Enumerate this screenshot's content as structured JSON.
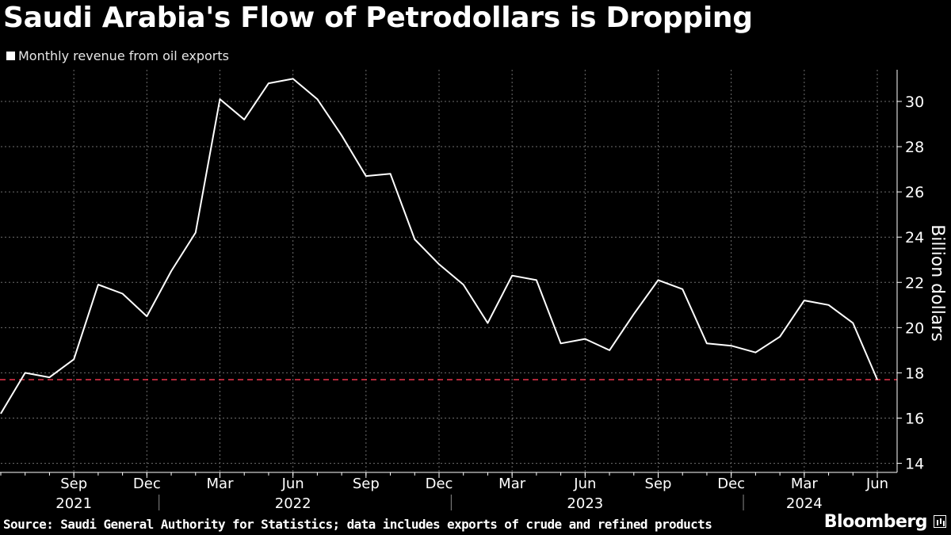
{
  "title": "Saudi Arabia's Flow of Petrodollars is Dropping",
  "legend_label": "Monthly revenue from oil exports",
  "source": "Source: Saudi General Authority for Statistics; data includes exports of crude and refined products",
  "brand": "Bloomberg",
  "colors": {
    "line": "#ffffff",
    "reference": "#e8344a",
    "grid": "#6e6e6e"
  },
  "chart_data": {
    "type": "line",
    "title": "Saudi Arabia's Flow of Petrodollars is Dropping",
    "ylabel": "Billion dollars",
    "xlabel": "",
    "ylim": [
      13.6,
      31.4
    ],
    "yticks": [
      14,
      16,
      18,
      20,
      22,
      24,
      26,
      28,
      30
    ],
    "grid": true,
    "legend_placement": "top-left",
    "x_start": "2021-06",
    "x_end": "2024-06",
    "xticks": [
      {
        "month_index": 3,
        "label": "Sep"
      },
      {
        "month_index": 6,
        "label": "Dec"
      },
      {
        "month_index": 9,
        "label": "Mar"
      },
      {
        "month_index": 12,
        "label": "Jun"
      },
      {
        "month_index": 15,
        "label": "Sep"
      },
      {
        "month_index": 18,
        "label": "Dec"
      },
      {
        "month_index": 21,
        "label": "Mar"
      },
      {
        "month_index": 24,
        "label": "Jun"
      },
      {
        "month_index": 27,
        "label": "Sep"
      },
      {
        "month_index": 30,
        "label": "Dec"
      },
      {
        "month_index": 33,
        "label": "Mar"
      },
      {
        "month_index": 36,
        "label": "Jun"
      }
    ],
    "year_labels": [
      {
        "month_index": 3,
        "label": "2021"
      },
      {
        "month_index": 12,
        "label": "2022"
      },
      {
        "month_index": 24,
        "label": "2023"
      },
      {
        "month_index": 33,
        "label": "2024"
      }
    ],
    "year_separators": [
      6.5,
      18.5,
      30.5
    ],
    "series": [
      {
        "name": "Monthly revenue from oil exports",
        "x": [
          "2021-06",
          "2021-07",
          "2021-08",
          "2021-09",
          "2021-10",
          "2021-11",
          "2021-12",
          "2022-01",
          "2022-02",
          "2022-03",
          "2022-04",
          "2022-05",
          "2022-06",
          "2022-07",
          "2022-08",
          "2022-09",
          "2022-10",
          "2022-11",
          "2022-12",
          "2023-01",
          "2023-02",
          "2023-03",
          "2023-04",
          "2023-05",
          "2023-06",
          "2023-07",
          "2023-08",
          "2023-09",
          "2023-10",
          "2023-11",
          "2023-12",
          "2024-01",
          "2024-02",
          "2024-03",
          "2024-04",
          "2024-05",
          "2024-06"
        ],
        "values": [
          16.2,
          18.0,
          17.8,
          18.6,
          21.9,
          21.5,
          20.5,
          22.5,
          24.2,
          30.1,
          29.2,
          30.8,
          31.0,
          30.1,
          28.5,
          26.7,
          26.8,
          23.9,
          22.8,
          21.9,
          20.2,
          22.3,
          22.1,
          19.3,
          19.5,
          19.0,
          20.6,
          22.1,
          21.7,
          19.3,
          19.2,
          18.9,
          19.6,
          21.2,
          21.0,
          20.2,
          17.7
        ]
      }
    ],
    "reference_line": {
      "value": 17.7,
      "style": "dashed"
    }
  }
}
